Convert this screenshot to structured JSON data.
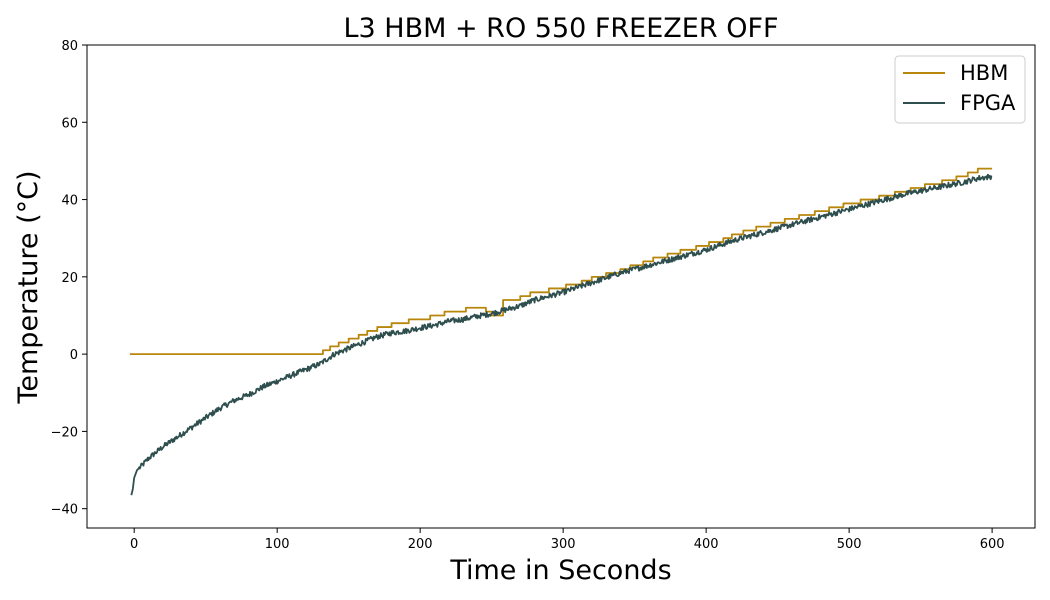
{
  "chart_data": {
    "type": "line",
    "title": "L3 HBM + RO 550 FREEZER OFF",
    "xlabel": "Time in Seconds",
    "ylabel": "Temperature (°C)",
    "xlim": [
      -33,
      630
    ],
    "ylim": [
      -45,
      80
    ],
    "xticks": [
      0,
      100,
      200,
      300,
      400,
      500,
      600
    ],
    "yticks": [
      -40,
      -20,
      0,
      20,
      40,
      60,
      80
    ],
    "grid": false,
    "legend_position": "top-right",
    "series": [
      {
        "name": "HBM",
        "color": "#b8860b",
        "style": "step",
        "points": [
          [
            -3,
            0
          ],
          [
            132,
            0
          ],
          [
            132,
            1
          ],
          [
            137,
            1
          ],
          [
            137,
            2
          ],
          [
            143,
            2
          ],
          [
            143,
            3
          ],
          [
            150,
            3
          ],
          [
            150,
            4
          ],
          [
            157,
            4
          ],
          [
            157,
            5
          ],
          [
            163,
            5
          ],
          [
            163,
            6
          ],
          [
            170,
            6
          ],
          [
            170,
            7
          ],
          [
            180,
            7
          ],
          [
            180,
            8
          ],
          [
            192,
            8
          ],
          [
            192,
            9
          ],
          [
            207,
            9
          ],
          [
            207,
            10
          ],
          [
            217,
            10
          ],
          [
            217,
            11
          ],
          [
            232,
            11
          ],
          [
            232,
            12
          ],
          [
            246,
            12
          ],
          [
            246,
            11
          ],
          [
            250,
            11
          ],
          [
            250,
            10
          ],
          [
            258,
            10
          ],
          [
            258,
            14
          ],
          [
            270,
            14
          ],
          [
            270,
            15
          ],
          [
            277,
            15
          ],
          [
            277,
            16
          ],
          [
            290,
            16
          ],
          [
            290,
            17
          ],
          [
            302,
            17
          ],
          [
            302,
            18
          ],
          [
            313,
            18
          ],
          [
            313,
            19
          ],
          [
            320,
            19
          ],
          [
            320,
            20
          ],
          [
            330,
            20
          ],
          [
            330,
            21
          ],
          [
            340,
            21
          ],
          [
            340,
            22
          ],
          [
            347,
            22
          ],
          [
            347,
            23
          ],
          [
            356,
            23
          ],
          [
            356,
            24
          ],
          [
            363,
            24
          ],
          [
            363,
            25
          ],
          [
            373,
            25
          ],
          [
            373,
            26
          ],
          [
            382,
            26
          ],
          [
            382,
            27
          ],
          [
            393,
            27
          ],
          [
            393,
            28
          ],
          [
            402,
            28
          ],
          [
            402,
            29
          ],
          [
            412,
            29
          ],
          [
            412,
            30
          ],
          [
            418,
            30
          ],
          [
            418,
            31
          ],
          [
            426,
            31
          ],
          [
            426,
            32
          ],
          [
            435,
            32
          ],
          [
            435,
            33
          ],
          [
            445,
            33
          ],
          [
            445,
            34
          ],
          [
            455,
            34
          ],
          [
            455,
            35
          ],
          [
            465,
            35
          ],
          [
            465,
            36
          ],
          [
            476,
            36
          ],
          [
            476,
            37
          ],
          [
            486,
            37
          ],
          [
            486,
            38
          ],
          [
            496,
            38
          ],
          [
            496,
            39
          ],
          [
            508,
            39
          ],
          [
            508,
            40
          ],
          [
            521,
            40
          ],
          [
            521,
            41
          ],
          [
            532,
            41
          ],
          [
            532,
            42
          ],
          [
            543,
            42
          ],
          [
            543,
            43
          ],
          [
            553,
            43
          ],
          [
            553,
            44
          ],
          [
            565,
            44
          ],
          [
            565,
            45
          ],
          [
            575,
            45
          ],
          [
            575,
            46
          ],
          [
            583,
            46
          ],
          [
            583,
            47
          ],
          [
            590,
            47
          ],
          [
            590,
            48
          ],
          [
            600,
            48
          ]
        ]
      },
      {
        "name": "FPGA",
        "color": "#2f4f4f",
        "style": "line",
        "points": [
          [
            -2,
            -36.5
          ],
          [
            -1,
            -35
          ],
          [
            0,
            -32
          ],
          [
            2,
            -30
          ],
          [
            5,
            -29
          ],
          [
            10,
            -27
          ],
          [
            15,
            -25.5
          ],
          [
            20,
            -24
          ],
          [
            30,
            -21.5
          ],
          [
            40,
            -19
          ],
          [
            50,
            -16.5
          ],
          [
            60,
            -14
          ],
          [
            70,
            -12
          ],
          [
            80,
            -10.5
          ],
          [
            90,
            -8.5
          ],
          [
            100,
            -7
          ],
          [
            110,
            -5.5
          ],
          [
            120,
            -4
          ],
          [
            130,
            -2.5
          ],
          [
            140,
            0
          ],
          [
            150,
            1.5
          ],
          [
            160,
            3
          ],
          [
            170,
            4.5
          ],
          [
            180,
            5.5
          ],
          [
            190,
            6
          ],
          [
            200,
            6.8
          ],
          [
            210,
            7.5
          ],
          [
            220,
            8.5
          ],
          [
            230,
            9
          ],
          [
            240,
            9.8
          ],
          [
            250,
            10.5
          ],
          [
            260,
            11.5
          ],
          [
            270,
            12.5
          ],
          [
            280,
            14
          ],
          [
            290,
            15
          ],
          [
            300,
            16
          ],
          [
            320,
            18.5
          ],
          [
            340,
            21
          ],
          [
            360,
            23
          ],
          [
            380,
            25
          ],
          [
            400,
            27
          ],
          [
            420,
            29.5
          ],
          [
            440,
            31.5
          ],
          [
            460,
            33.5
          ],
          [
            480,
            35.5
          ],
          [
            500,
            37.5
          ],
          [
            520,
            39.5
          ],
          [
            540,
            41.5
          ],
          [
            560,
            43
          ],
          [
            580,
            44.5
          ],
          [
            590,
            45.5
          ],
          [
            600,
            46
          ]
        ]
      }
    ]
  }
}
